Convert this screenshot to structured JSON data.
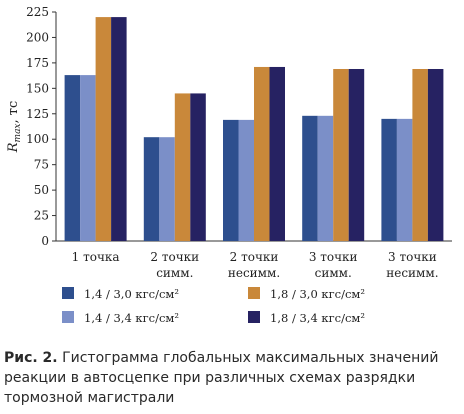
{
  "chart_data": {
    "type": "bar",
    "ylabel_main": "R",
    "ylabel_sub": "max",
    "ylabel_unit": ", тс",
    "ylim": [
      0,
      225
    ],
    "yticks": [
      0,
      25,
      50,
      75,
      100,
      125,
      150,
      175,
      200,
      225
    ],
    "grid": false,
    "legend_position": "bottom",
    "categories": [
      [
        "1 точка"
      ],
      [
        "2 точки",
        "симм."
      ],
      [
        "2 точки",
        "несимм."
      ],
      [
        "3 точки",
        "симм."
      ],
      [
        "3 точки",
        "несимм."
      ]
    ],
    "series": [
      {
        "name": "1,4 / 3,0 кгс/см²",
        "color": "#2e4f8e",
        "values": [
          163,
          102,
          119,
          123,
          120
        ]
      },
      {
        "name": "1,4 / 3,4 кгс/см²",
        "color": "#7b8fc8",
        "values": [
          163,
          102,
          119,
          123,
          120
        ]
      },
      {
        "name": "1,8 / 3,0 кгс/см²",
        "color": "#c9883a",
        "values": [
          220,
          145,
          171,
          169,
          169
        ]
      },
      {
        "name": "1,8 / 3,4 кгс/см²",
        "color": "#262262",
        "values": [
          220,
          145,
          171,
          169,
          169
        ]
      }
    ]
  },
  "caption": {
    "label": "Рис. 2.",
    "text": " Гистограмма глобальных максимальных значений реакции в автосцепке при различных схемах разрядки тормозной магистрали"
  }
}
